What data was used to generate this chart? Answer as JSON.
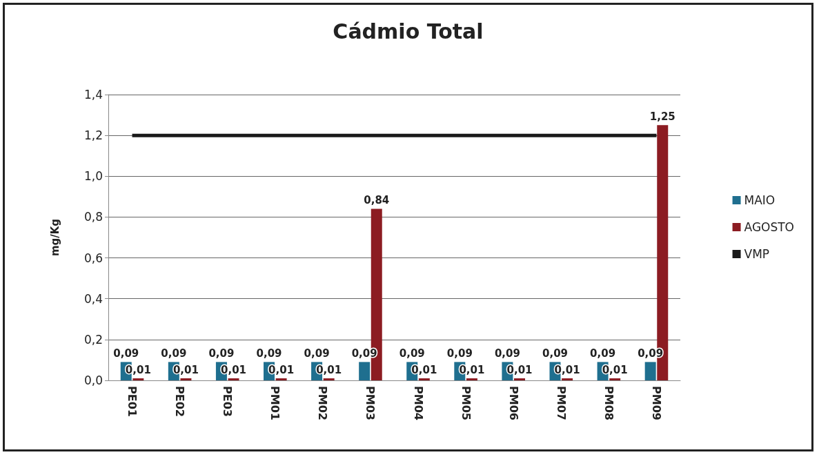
{
  "chart_data": {
    "type": "bar",
    "title": "Cádmio Total",
    "ylabel": "mg/Kg",
    "categories": [
      "PE01",
      "PE02",
      "PE03",
      "PM01",
      "PM02",
      "PM03",
      "PM04",
      "PM05",
      "PM06",
      "PM07",
      "PM08",
      "PM09"
    ],
    "series": [
      {
        "name": "MAIO",
        "color": "#1f6f8f",
        "values": [
          0.09,
          0.09,
          0.09,
          0.09,
          0.09,
          0.09,
          0.09,
          0.09,
          0.09,
          0.09,
          0.09,
          0.09
        ],
        "value_labels": [
          "0,09",
          "0,09",
          "0,09",
          "0,09",
          "0,09",
          "0,09",
          "0,09",
          "0,09",
          "0,09",
          "0,09",
          "0,09",
          "0,09"
        ]
      },
      {
        "name": "AGOSTO",
        "color": "#8c1c22",
        "values": [
          0.01,
          0.01,
          0.01,
          0.01,
          0.01,
          0.84,
          0.01,
          0.01,
          0.01,
          0.01,
          0.01,
          1.25
        ],
        "value_labels": [
          "0,01",
          "0,01",
          "0,01",
          "0,01",
          "0,01",
          "0,84",
          "0,01",
          "0,01",
          "0,01",
          "0,01",
          "0,01",
          "1,25"
        ]
      },
      {
        "name": "VMP",
        "type": "line",
        "color": "#1a1a1a",
        "values": [
          1.2,
          1.2,
          1.2,
          1.2,
          1.2,
          1.2,
          1.2,
          1.2,
          1.2,
          1.2,
          1.2,
          1.2
        ]
      }
    ],
    "ylim": [
      0,
      1.4
    ],
    "yticks": [
      {
        "value": 0,
        "label": "0,0"
      },
      {
        "value": 0.2,
        "label": "0,2"
      },
      {
        "value": 0.4,
        "label": "0,4"
      },
      {
        "value": 0.6,
        "label": "0,6"
      },
      {
        "value": 0.8,
        "label": "0,8"
      },
      {
        "value": 1.0,
        "label": "1,0"
      },
      {
        "value": 1.2,
        "label": "1,2"
      },
      {
        "value": 1.4,
        "label": "1,4"
      }
    ],
    "grid": "y",
    "legend": "right",
    "marker": "none"
  }
}
